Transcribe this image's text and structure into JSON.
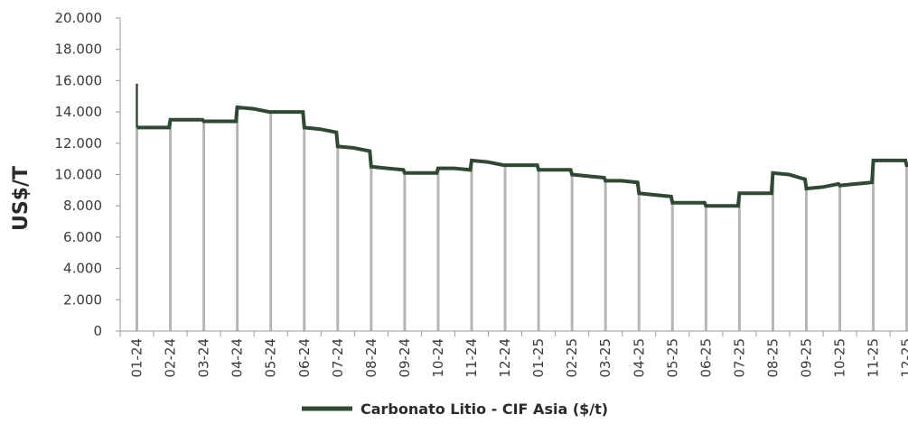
{
  "chart_data": {
    "type": "line",
    "title": "",
    "xlabel": "",
    "ylabel": "US$/T",
    "ylim": [
      0,
      20000
    ],
    "yticks": [
      "0",
      "2.000",
      "4.000",
      "6.000",
      "8.000",
      "10.000",
      "12.000",
      "14.000",
      "16.000",
      "18.000",
      "20.000"
    ],
    "categories": [
      "01-24",
      "02-24",
      "03-24",
      "04-24",
      "05-24",
      "06-24",
      "07-24",
      "08-24",
      "09-24",
      "10-24",
      "11-24",
      "12-24",
      "01-25",
      "02-25",
      "03-25",
      "04-25",
      "05-25",
      "06-25",
      "07-25",
      "08-25",
      "09-25",
      "10-25",
      "11-25",
      "12-25"
    ],
    "grid": false,
    "legend_position": "bottom",
    "series": [
      {
        "name": "Carbonato Litio - CIF Asia ($/t)",
        "color": "#2e4a33",
        "segments": [
          [
            15800,
            13000,
            13000
          ],
          [
            13500,
            13500,
            13500
          ],
          [
            13400,
            13400,
            13400
          ],
          [
            14300,
            14200,
            14000
          ],
          [
            14000,
            14000,
            14000
          ],
          [
            13000,
            12900,
            12700
          ],
          [
            11800,
            11700,
            11500
          ],
          [
            10500,
            10400,
            10300
          ],
          [
            10100,
            10100,
            10100
          ],
          [
            10400,
            10400,
            10300
          ],
          [
            10900,
            10800,
            10600
          ],
          [
            10600,
            10600,
            10600
          ],
          [
            10300,
            10300,
            10300
          ],
          [
            10000,
            9900,
            9800
          ],
          [
            9600,
            9600,
            9500
          ],
          [
            8800,
            8700,
            8600
          ],
          [
            8200,
            8200,
            8200
          ],
          [
            8000,
            8000,
            8000
          ],
          [
            8800,
            8800,
            8800
          ],
          [
            10100,
            10000,
            9700
          ],
          [
            9100,
            9200,
            9400
          ],
          [
            9300,
            9400,
            9500
          ],
          [
            10900,
            10900,
            10900
          ],
          [
            10600,
            10600,
            10600
          ]
        ]
      }
    ]
  }
}
